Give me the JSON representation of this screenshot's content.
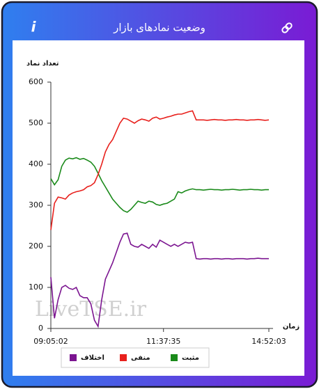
{
  "header": {
    "icon": "i"
  },
  "chart_data": {
    "type": "line",
    "title": "وضعیت نمادهای بازار",
    "y_label": "تعداد نماد",
    "x_label": "زمان",
    "watermark": "LiveTSE.ir",
    "categories": [
      "09:05:02",
      null,
      null,
      null,
      null,
      null,
      null,
      null,
      null,
      null,
      null,
      null,
      null,
      null,
      null,
      null,
      null,
      null,
      null,
      null,
      null,
      null,
      null,
      null,
      null,
      null,
      null,
      null,
      null,
      null,
      null,
      "11:37:35",
      null,
      null,
      null,
      null,
      null,
      null,
      null,
      null,
      null,
      null,
      null,
      null,
      null,
      null,
      null,
      null,
      null,
      null,
      null,
      null,
      null,
      null,
      null,
      null,
      null,
      null,
      null,
      null,
      "14:52:03"
    ],
    "ylim": [
      0,
      600
    ],
    "yticks": [
      0,
      100,
      200,
      300,
      400,
      500,
      600
    ],
    "grid": false,
    "series": [
      {
        "name": "مثبت",
        "color": "#1a8a1a",
        "values": [
          365,
          350,
          362,
          395,
          410,
          415,
          413,
          416,
          412,
          414,
          410,
          405,
          395,
          378,
          360,
          345,
          330,
          315,
          305,
          295,
          287,
          283,
          290,
          300,
          310,
          307,
          305,
          310,
          308,
          302,
          300,
          303,
          305,
          310,
          315,
          333,
          330,
          335,
          338,
          340,
          338,
          338,
          337,
          338,
          339,
          338,
          338,
          337,
          338,
          338,
          339,
          338,
          337,
          338,
          338,
          339,
          338,
          338,
          337,
          338,
          338
        ]
      },
      {
        "name": "منفی",
        "color": "#e8201c",
        "values": [
          240,
          305,
          320,
          318,
          315,
          325,
          330,
          333,
          335,
          338,
          345,
          348,
          355,
          375,
          400,
          430,
          448,
          460,
          480,
          500,
          512,
          510,
          505,
          500,
          506,
          510,
          508,
          505,
          512,
          515,
          510,
          512,
          515,
          517,
          520,
          522,
          522,
          525,
          528,
          530,
          508,
          508,
          508,
          507,
          508,
          509,
          508,
          508,
          507,
          508,
          508,
          509,
          508,
          508,
          507,
          508,
          508,
          509,
          508,
          507,
          508
        ]
      },
      {
        "name": "اختلاف",
        "color": "#7b1490",
        "values": [
          125,
          25,
          70,
          100,
          105,
          98,
          95,
          100,
          80,
          75,
          75,
          60,
          20,
          5,
          70,
          120,
          140,
          160,
          185,
          210,
          230,
          232,
          205,
          200,
          198,
          205,
          200,
          195,
          205,
          198,
          215,
          210,
          205,
          200,
          205,
          200,
          205,
          210,
          208,
          210,
          170,
          169,
          170,
          170,
          169,
          170,
          170,
          169,
          170,
          170,
          169,
          170,
          170,
          170,
          169,
          170,
          170,
          171,
          170,
          170,
          170
        ]
      }
    ]
  }
}
